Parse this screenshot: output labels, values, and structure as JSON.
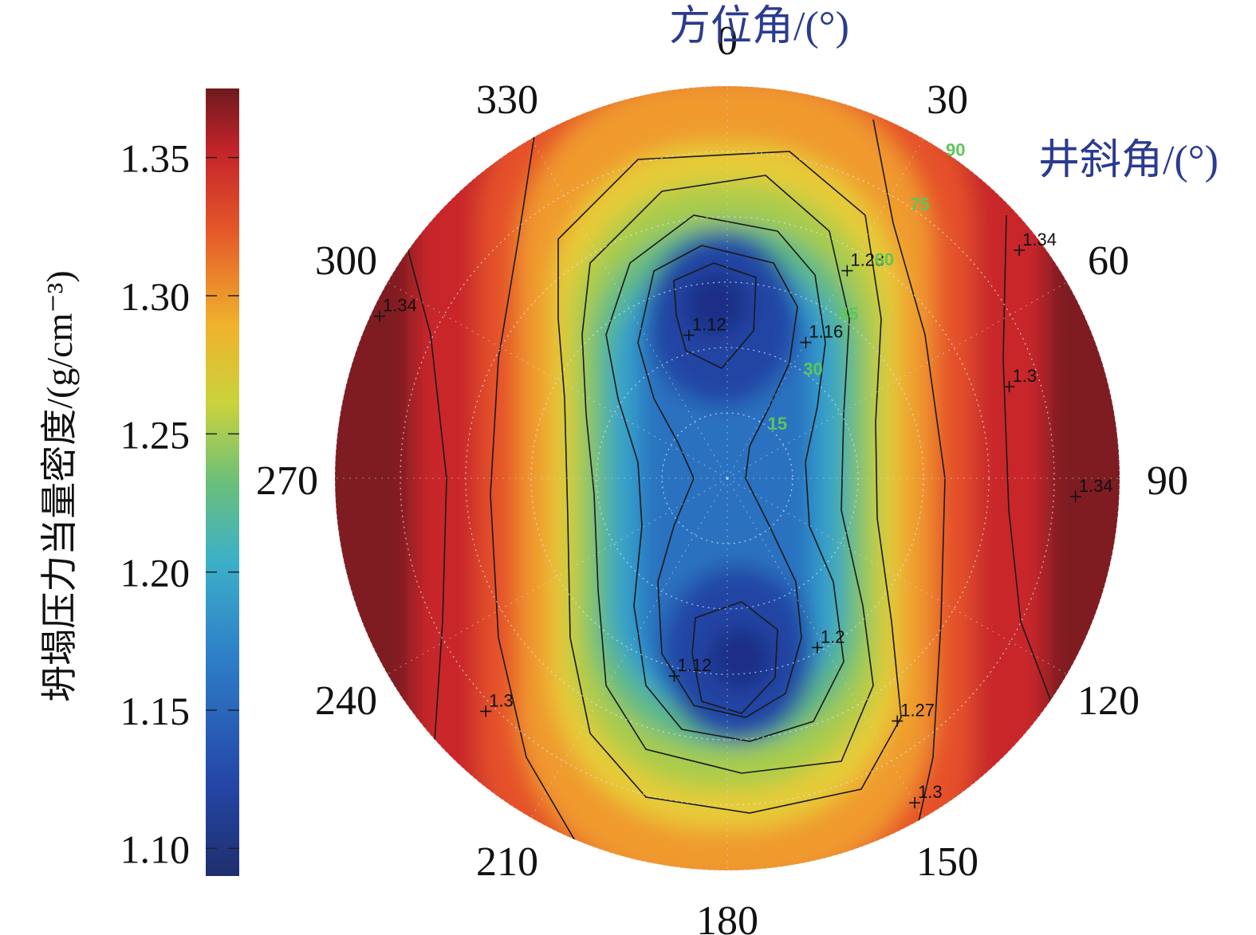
{
  "chart_data": {
    "type": "heatmap",
    "projection": "polar",
    "angular_axis": {
      "label": "方位角/(°)",
      "ticks": [
        "0",
        "30",
        "60",
        "90",
        "120",
        "150",
        "180",
        "210",
        "240",
        "270",
        "300",
        "330"
      ],
      "values": [
        0,
        30,
        60,
        90,
        120,
        150,
        180,
        210,
        240,
        270,
        300,
        330
      ]
    },
    "radial_axis": {
      "label": "井斜角/(°)",
      "ticks": [
        "15",
        "30",
        "45",
        "60",
        "75",
        "90"
      ],
      "values": [
        15,
        30,
        45,
        60,
        75,
        90
      ],
      "range": [
        0,
        90
      ]
    },
    "colorbar": {
      "label": "坍塌压力当量密度/(g/cm⁻³)",
      "ticks": [
        "1.35",
        "1.30",
        "1.25",
        "1.20",
        "1.15",
        "1.10"
      ],
      "values": [
        1.35,
        1.3,
        1.25,
        1.2,
        1.15,
        1.1
      ],
      "range": [
        1.09,
        1.375
      ],
      "colormap": "jet"
    },
    "contour_labels": [
      {
        "text": "1.23",
        "azimuth": 30,
        "inclination": 55
      },
      {
        "text": "1.16",
        "azimuth": 30,
        "inclination": 36
      },
      {
        "text": "1.12",
        "azimuth": 345,
        "inclination": 34
      },
      {
        "text": "1.34",
        "azimuth": 52,
        "inclination": 85
      },
      {
        "text": "1.3",
        "azimuth": 72,
        "inclination": 68
      },
      {
        "text": "1.34",
        "azimuth": 295,
        "inclination": 88
      },
      {
        "text": "1.34",
        "azimuth": 93,
        "inclination": 80
      },
      {
        "text": "1.12",
        "azimuth": 195,
        "inclination": 47
      },
      {
        "text": "1.2",
        "azimuth": 152,
        "inclination": 44
      },
      {
        "text": "1.27",
        "azimuth": 145,
        "inclination": 68
      },
      {
        "text": "1.3",
        "azimuth": 226,
        "inclination": 77
      },
      {
        "text": "1.3",
        "azimuth": 150,
        "inclination": 86
      }
    ]
  }
}
